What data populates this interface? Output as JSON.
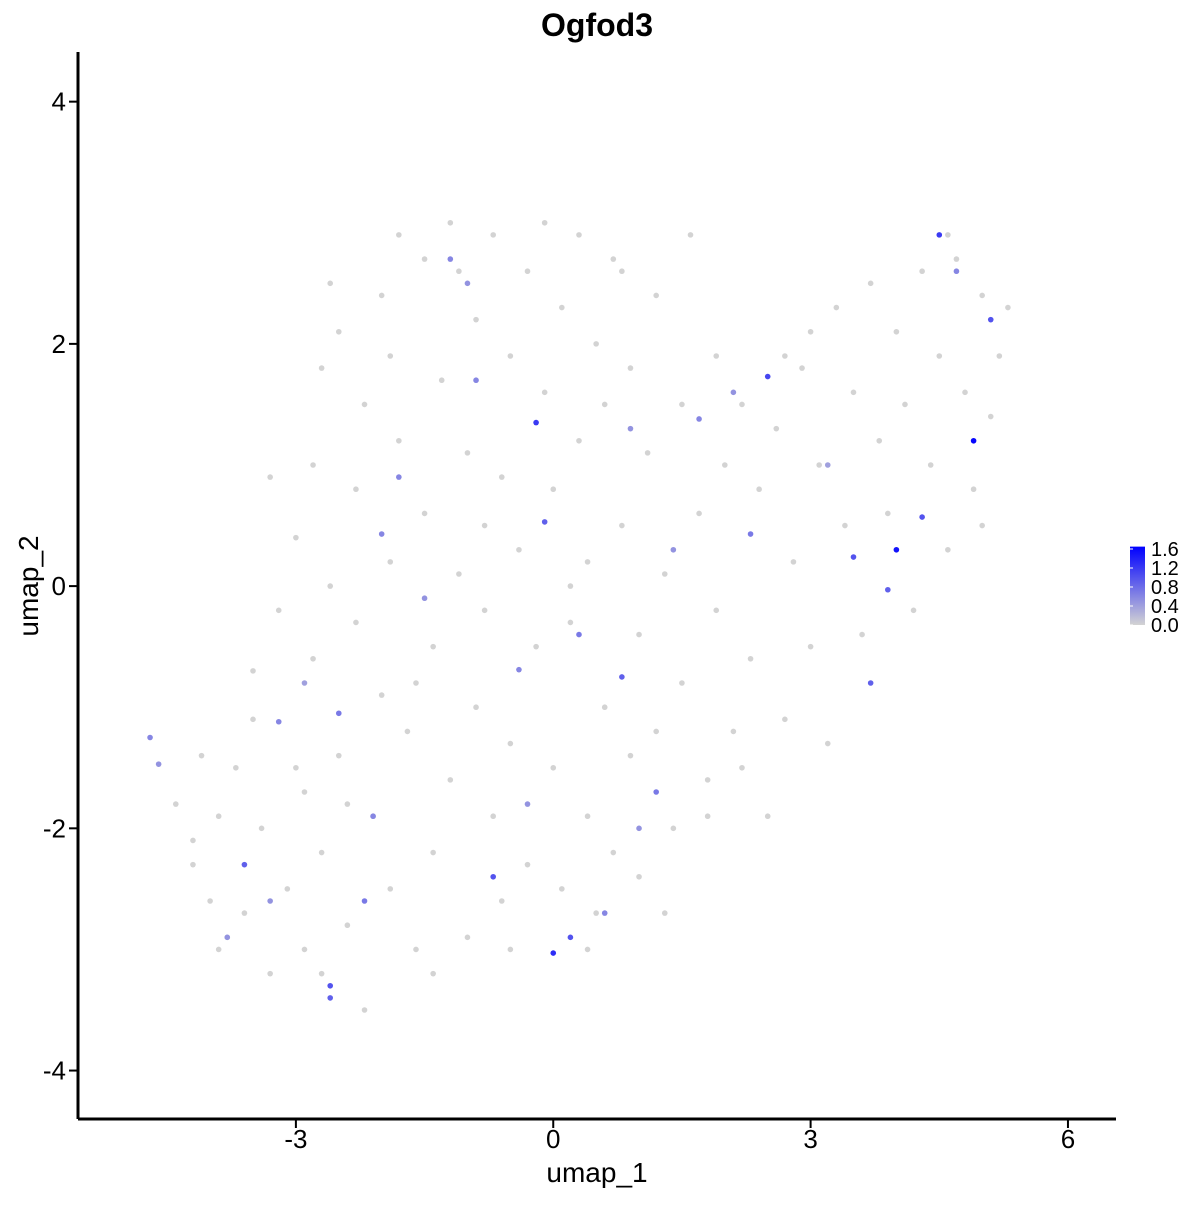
{
  "chart_data": {
    "type": "scatter",
    "title": "Ogfod3",
    "x_label": "umap_1",
    "y_label": "umap_2",
    "xlim": [
      -5.54,
      6.56
    ],
    "ylim": [
      -4.4,
      4.41
    ],
    "xticks": [
      -3,
      0,
      3,
      6
    ],
    "yticks": [
      -4,
      -2,
      0,
      2,
      4
    ],
    "color_low": "#d3d3d3",
    "color_high": "#0000ff",
    "colorlim": [
      0,
      1.65
    ],
    "colorticks": [
      {
        "value": 0,
        "label": "0.0"
      },
      {
        "value": 0.4,
        "label": "0.4"
      },
      {
        "value": 0.8,
        "label": "0.8"
      },
      {
        "value": 1.2,
        "label": "1.2"
      },
      {
        "value": 1.6,
        "label": "1.6"
      }
    ],
    "x": [
      -4.4,
      -4.2,
      -4.1,
      -4.0,
      -3.9,
      -3.8,
      -3.7,
      -3.6,
      -3.5,
      -3.4,
      -3.3,
      -3.2,
      -3.1,
      -3.0,
      -2.9,
      -2.9,
      -2.8,
      -2.8,
      -2.7,
      -2.7,
      -2.6,
      -2.5,
      -2.5,
      -2.4,
      -2.3,
      -2.3,
      -2.2,
      -2.2,
      -2.1,
      -2.0,
      -2.0,
      -1.9,
      -1.9,
      -1.8,
      -1.8,
      -1.7,
      -1.6,
      -1.5,
      -1.5,
      -1.4,
      -1.4,
      -1.3,
      -1.2,
      -1.2,
      -1.1,
      -1.0,
      -1.0,
      -0.9,
      -0.9,
      -0.8,
      -0.7,
      -0.7,
      -0.6,
      -0.6,
      -0.5,
      -0.5,
      -0.4,
      -0.3,
      -0.3,
      -0.2,
      -0.1,
      -0.1,
      0.0,
      0.0,
      0.1,
      0.1,
      0.2,
      0.3,
      0.3,
      0.4,
      0.4,
      0.5,
      0.5,
      0.6,
      0.6,
      0.7,
      0.7,
      0.8,
      0.9,
      0.9,
      1.0,
      1.0,
      1.1,
      1.2,
      1.2,
      1.3,
      1.4,
      1.5,
      1.5,
      1.6,
      1.7,
      1.8,
      1.9,
      1.9,
      2.0,
      2.1,
      2.2,
      2.3,
      2.4,
      2.5,
      2.6,
      2.7,
      2.8,
      2.9,
      3.0,
      3.1,
      3.2,
      3.3,
      3.4,
      3.5,
      3.6,
      3.7,
      3.8,
      3.9,
      4.0,
      4.1,
      4.2,
      4.3,
      4.4,
      4.5,
      4.6,
      4.7,
      4.8,
      4.9,
      5.0,
      5.1,
      5.2,
      5.3,
      5.0,
      4.6,
      3.0,
      2.7,
      -3.5,
      -3.0,
      -2.4,
      -1.6,
      -0.8,
      0.2,
      1.8,
      2.2,
      -4.2,
      -3.9,
      -3.3,
      -2.6,
      -1.9,
      -1.1,
      0.8,
      1.3,
      0.4,
      -0.5,
      -2.7,
      -1.4,
      4.9,
      4.0,
      0.0,
      -0.2,
      4.5,
      2.5,
      -2.6,
      -2.6,
      0.8,
      3.7,
      -3.6,
      5.1,
      0.2,
      -0.7,
      -0.1,
      3.5,
      4.3,
      -4.7,
      -4.6,
      -3.2,
      -1.0,
      1.7,
      -2.0,
      3.9,
      -2.5,
      -0.4,
      1.2,
      2.3,
      -3.3,
      -2.1,
      -1.5,
      -0.9,
      0.3,
      1.0,
      -1.8,
      -2.9,
      -0.3,
      0.6,
      2.1,
      3.2,
      -3.8,
      -1.2,
      0.9,
      4.7,
      -2.2,
      1.4
    ],
    "y": [
      -1.8,
      -2.1,
      -1.4,
      -2.6,
      -1.9,
      -2.9,
      -1.5,
      -2.7,
      -0.7,
      -2.0,
      -3.2,
      -0.2,
      -2.5,
      0.4,
      -1.7,
      -3.0,
      1.0,
      -0.6,
      1.8,
      -2.2,
      0.0,
      2.1,
      -1.4,
      -2.8,
      0.8,
      -0.3,
      1.5,
      -3.5,
      -1.9,
      2.4,
      -0.9,
      0.2,
      -2.5,
      2.9,
      1.2,
      -1.2,
      -3.0,
      0.6,
      2.7,
      -0.5,
      -2.2,
      1.7,
      3.0,
      -1.6,
      0.1,
      -2.9,
      1.1,
      2.2,
      -1.0,
      -0.2,
      2.9,
      -1.9,
      0.9,
      -2.6,
      1.9,
      -1.3,
      0.3,
      2.6,
      -2.3,
      -0.5,
      1.6,
      3.0,
      -1.5,
      0.8,
      2.3,
      -2.5,
      -0.3,
      1.2,
      2.9,
      -1.9,
      0.2,
      2.0,
      -2.7,
      -1.0,
      1.5,
      2.7,
      -2.2,
      0.5,
      -1.4,
      1.8,
      -2.4,
      -0.4,
      1.1,
      2.4,
      -1.2,
      0.1,
      -2.0,
      1.5,
      -0.8,
      2.9,
      0.6,
      -1.6,
      1.9,
      -0.2,
      1.0,
      -1.2,
      1.5,
      -0.6,
      0.8,
      -1.9,
      1.3,
      -1.1,
      0.2,
      1.8,
      -0.5,
      1.0,
      -1.3,
      2.3,
      0.5,
      1.6,
      -0.4,
      2.5,
      1.2,
      0.6,
      2.1,
      1.5,
      -0.2,
      2.6,
      1.0,
      1.9,
      0.3,
      2.7,
      1.6,
      0.8,
      2.4,
      1.4,
      1.9,
      2.3,
      0.5,
      2.9,
      2.1,
      1.9,
      -1.1,
      -1.5,
      -1.8,
      -0.8,
      0.5,
      0.0,
      -1.9,
      -1.5,
      -2.3,
      -3.0,
      0.9,
      2.5,
      1.9,
      2.6,
      2.6,
      -2.7,
      -3.0,
      -3.0,
      -3.2,
      -3.2,
      1.2,
      0.3,
      -3.03,
      1.35,
      2.9,
      1.73,
      -3.3,
      -3.4,
      -0.75,
      -0.8,
      -2.3,
      2.2,
      -2.9,
      -2.4,
      0.53,
      0.24,
      0.57,
      -1.25,
      -1.47,
      -1.12,
      2.5,
      1.38,
      0.43,
      -0.03,
      -1.05,
      -0.69,
      -1.7,
      0.43,
      -2.6,
      -1.9,
      -0.1,
      1.7,
      -0.4,
      -2.0,
      0.9,
      -0.8,
      -1.8,
      -2.7,
      1.6,
      1.0,
      -2.9,
      2.7,
      1.3,
      2.6,
      -2.6,
      0.3
    ],
    "values": [
      0,
      0,
      0,
      0,
      0,
      0,
      0,
      0,
      0,
      0,
      0,
      0,
      0,
      0,
      0,
      0,
      0,
      0,
      0,
      0,
      0,
      0,
      0,
      0,
      0,
      0,
      0,
      0,
      0,
      0,
      0,
      0,
      0,
      0,
      0,
      0,
      0,
      0,
      0,
      0,
      0,
      0,
      0,
      0,
      0,
      0,
      0,
      0,
      0,
      0,
      0,
      0,
      0,
      0,
      0,
      0,
      0,
      0,
      0,
      0,
      0,
      0,
      0,
      0,
      0,
      0,
      0,
      0,
      0,
      0,
      0,
      0,
      0,
      0,
      0,
      0,
      0,
      0,
      0,
      0,
      0,
      0,
      0,
      0,
      0,
      0,
      0,
      0,
      0,
      0,
      0,
      0,
      0,
      0,
      0,
      0,
      0,
      0,
      0,
      0,
      0,
      0,
      0,
      0,
      0,
      0,
      0,
      0,
      0,
      0,
      0,
      0,
      0,
      0,
      0,
      0,
      0,
      0,
      0,
      0,
      0,
      0,
      0,
      0,
      0,
      0,
      0,
      0,
      0,
      0,
      0,
      0,
      0,
      0,
      0,
      0,
      0,
      0,
      0,
      0,
      0,
      0,
      0,
      0,
      0,
      0,
      0,
      0,
      0,
      0,
      0,
      0,
      1.6,
      1.5,
      1.3,
      1.2,
      1.2,
      1.1,
      1.0,
      0.9,
      0.9,
      0.9,
      0.9,
      1.0,
      1.0,
      1.0,
      0.9,
      1.0,
      1.0,
      0.6,
      0.5,
      0.6,
      0.5,
      0.6,
      0.6,
      0.9,
      0.7,
      0.6,
      0.7,
      0.7,
      0.5,
      0.6,
      0.5,
      0.6,
      0.7,
      0.5,
      0.6,
      0.4,
      0.5,
      0.6,
      0.5,
      0.4,
      0.5,
      0.6,
      0.5,
      0.6,
      0.7,
      0.5
    ]
  }
}
